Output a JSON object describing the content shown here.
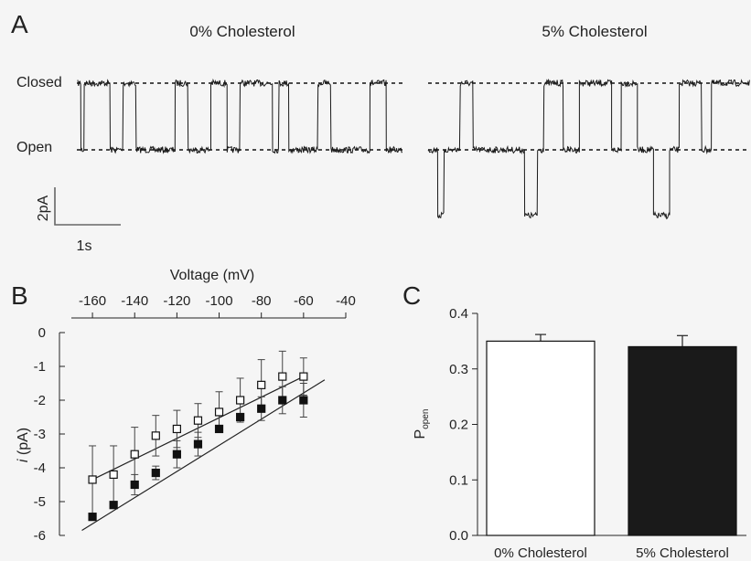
{
  "chart_data": [
    {
      "panel": "A",
      "type": "line",
      "traces": [
        {
          "title": "0% Cholesterol"
        },
        {
          "title": "5% Cholesterol"
        }
      ],
      "state_labels": {
        "closed": "Closed",
        "open": "Open"
      },
      "scale_bars": {
        "current": "2pA",
        "time": "1s"
      }
    },
    {
      "panel": "B",
      "type": "scatter",
      "xlabel": "Voltage (mV)",
      "ylabel_italic": "i",
      "ylabel_rest": " (pA)",
      "xlim": [
        -170,
        -40
      ],
      "ylim": [
        -6,
        0
      ],
      "xticks": [
        -160,
        -140,
        -120,
        -100,
        -80,
        -60,
        -40
      ],
      "yticks": [
        0,
        -1,
        -2,
        -3,
        -4,
        -5,
        -6
      ],
      "grid": false,
      "series": [
        {
          "marker": "open-square",
          "x": [
            -160,
            -150,
            -140,
            -130,
            -120,
            -110,
            -100,
            -90,
            -80,
            -70,
            -60
          ],
          "y": [
            -4.35,
            -4.2,
            -3.6,
            -3.05,
            -2.85,
            -2.6,
            -2.35,
            -2.0,
            -1.55,
            -1.3,
            -1.3
          ],
          "err": [
            1.0,
            0.85,
            0.8,
            0.6,
            0.55,
            0.5,
            0.6,
            0.65,
            0.75,
            0.75,
            0.55
          ],
          "fit": [
            [
              -160,
              -4.35
            ],
            [
              -60,
              -1.3
            ]
          ]
        },
        {
          "marker": "filled-square",
          "x": [
            -160,
            -150,
            -140,
            -130,
            -120,
            -110,
            -100,
            -90,
            -80,
            -70,
            -60
          ],
          "y": [
            -5.45,
            -5.1,
            -4.5,
            -4.15,
            -3.6,
            -3.3,
            -2.85,
            -2.5,
            -2.25,
            -2.0,
            -2.0
          ],
          "err": [
            0.1,
            0.1,
            0.3,
            0.2,
            0.4,
            0.35,
            0.1,
            0.1,
            0.35,
            0.4,
            0.5
          ],
          "fit": [
            [
              -165,
              -5.85
            ],
            [
              -50,
              -1.4
            ]
          ]
        }
      ]
    },
    {
      "panel": "C",
      "type": "bar",
      "ylabel_main": "P",
      "ylabel_sub": "open",
      "ylim": [
        0,
        0.4
      ],
      "yticks": [
        "0.0",
        "0.1",
        "0.2",
        "0.3",
        "0.4"
      ],
      "grid": false,
      "categories": [
        "0% Cholesterol",
        "5% Cholesterol"
      ],
      "values": [
        0.35,
        0.34
      ],
      "errors": [
        0.012,
        0.02
      ],
      "colors": [
        "#ffffff",
        "#1a1a1a"
      ]
    }
  ]
}
